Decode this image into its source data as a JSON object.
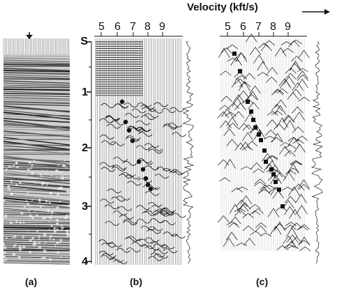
{
  "velocity_axis": {
    "title": "Velocity (kft/s)",
    "ticks": [
      "5",
      "6",
      "7",
      "8",
      "9"
    ]
  },
  "time_axis": {
    "ticks": [
      "S",
      "1",
      "2",
      "3",
      "4"
    ]
  },
  "panels": {
    "a": {
      "label": "(a)"
    },
    "b": {
      "label": "(b)"
    },
    "c": {
      "label": "(c)"
    }
  },
  "colors": {
    "ink": "#111111",
    "paper": "#ffffff",
    "trace": "#333333"
  }
}
